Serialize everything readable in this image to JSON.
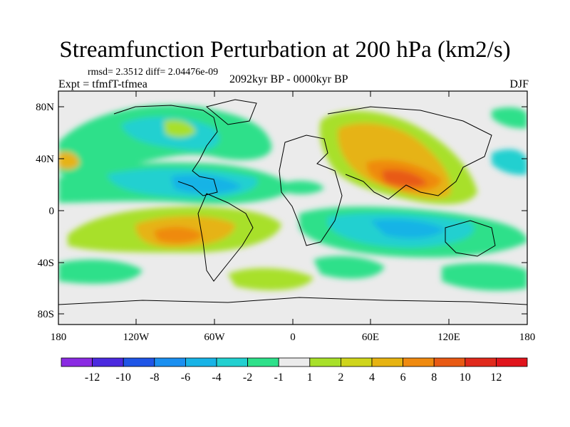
{
  "title": "Streamfunction Perturbation at 200 hPa (km2/s)",
  "stats_line": "rmsd= 2.3512 diff= 2.04476e-09",
  "experiment": "Expt = tfmfT-tfmea",
  "period": "2092kyr BP - 0000kyr BP",
  "season": "DJF",
  "map": {
    "lat_ticks": [
      "80N",
      "40N",
      "0",
      "40S",
      "80S"
    ],
    "lon_ticks": [
      "180",
      "120W",
      "60W",
      "0",
      "60E",
      "120E",
      "180"
    ]
  },
  "colorbar": {
    "levels": [
      "-12",
      "-10",
      "-8",
      "-6",
      "-4",
      "-2",
      "-1",
      "1",
      "2",
      "4",
      "6",
      "8",
      "10",
      "12"
    ],
    "colors": [
      "#8a2be2",
      "#4b2adf",
      "#1f55e6",
      "#1a8ff0",
      "#18b3e6",
      "#22d0d0",
      "#2ee08a",
      "#ebebeb",
      "#a8e02a",
      "#cfd51c",
      "#e6b312",
      "#ef8a10",
      "#e85a14",
      "#e02a1c",
      "#e0141c"
    ]
  }
}
